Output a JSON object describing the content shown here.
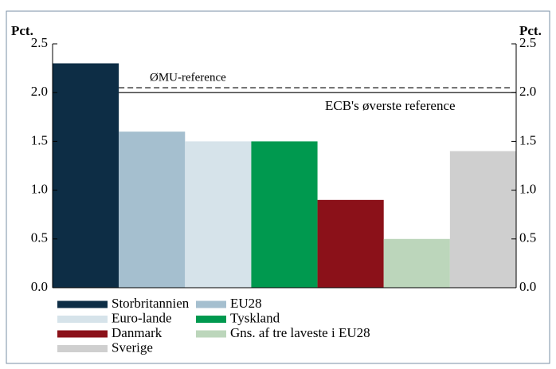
{
  "chart_data": {
    "type": "bar",
    "y_label": "Pct.",
    "y2_label": "Pct.",
    "categories": [
      "Storbritannien",
      "EU28",
      "Euro-lande",
      "Tyskland",
      "Danmark",
      "Gns. af tre laveste i EU28",
      "Sverige"
    ],
    "values": [
      2.3,
      1.6,
      1.5,
      1.5,
      0.9,
      0.5,
      1.4
    ],
    "colors": [
      "#0d2d45",
      "#a5bfcf",
      "#d6e3ea",
      "#00994f",
      "#8b1119",
      "#bcd6bb",
      "#cfcfcf"
    ],
    "ylim": [
      0,
      2.5
    ],
    "yticks": [
      {
        "value": 0,
        "label": "0.0"
      },
      0.5,
      {
        "value": 1,
        "label": "1.0"
      },
      1.5,
      {
        "value": 2,
        "label": "2.0"
      },
      2.5
    ],
    "y2lim": [
      0,
      2.5
    ],
    "y2ticks": [
      {
        "value": 0,
        "label": "0.0"
      },
      0.5,
      {
        "value": 1,
        "label": "1.0"
      },
      1.5,
      {
        "value": 2,
        "label": "2.0"
      },
      2.5
    ],
    "reference_lines": [
      {
        "label": "ØMU-reference",
        "value": 2.05,
        "style": "dashed"
      },
      {
        "label": "ECB's øverste reference",
        "value": 2.0,
        "style": "solid"
      }
    ]
  }
}
